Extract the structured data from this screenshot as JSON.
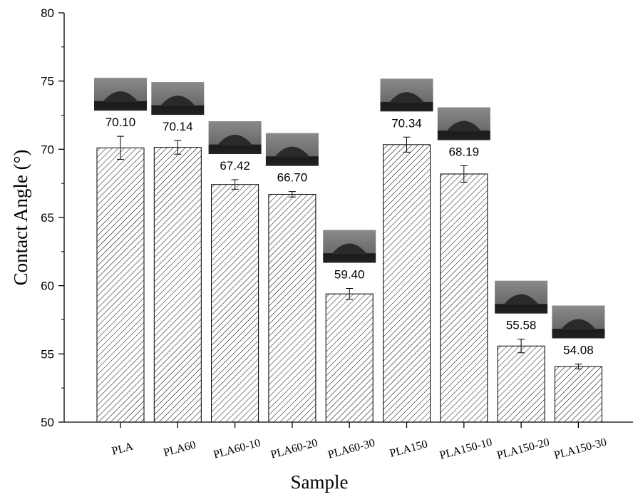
{
  "chart_data": {
    "type": "bar",
    "x_label": "Sample",
    "y_label": "Contact Angle (°)",
    "categories": [
      "PLA",
      "PLA60",
      "PLA60-10",
      "PLA60-20",
      "PLA60-30",
      "PLA150",
      "PLA150-10",
      "PLA150-20",
      "PLA150-30"
    ],
    "values": [
      70.1,
      70.14,
      67.42,
      66.7,
      59.4,
      70.34,
      68.19,
      55.58,
      54.08
    ],
    "value_labels": [
      "70.10",
      "70.14",
      "67.42",
      "66.70",
      "59.40",
      "70.34",
      "68.19",
      "55.58",
      "54.08"
    ],
    "errors": [
      0.85,
      0.5,
      0.35,
      0.2,
      0.4,
      0.55,
      0.6,
      0.5,
      0.18
    ],
    "color": "#000000",
    "ylim": [
      50,
      80
    ],
    "yticks": [
      50,
      55,
      60,
      65,
      70,
      75,
      80
    ]
  }
}
